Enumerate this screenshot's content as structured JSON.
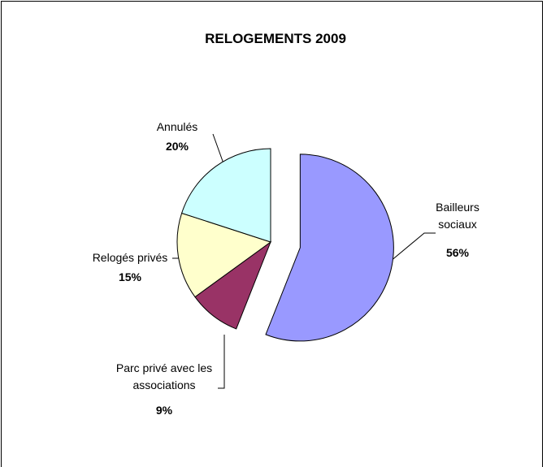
{
  "chart_data": {
    "type": "pie",
    "title": "RELOGEMENTS 2009",
    "categories": [
      "Bailleurs sociaux",
      "Parc privé avec les associations",
      "Relogés privés",
      "Annulés"
    ],
    "values": [
      56,
      9,
      15,
      20
    ],
    "value_labels": [
      "56%",
      "9%",
      "15%",
      "20%"
    ],
    "colors": [
      "#9999ff",
      "#993366",
      "#ffffcc",
      "#ccffff"
    ]
  }
}
